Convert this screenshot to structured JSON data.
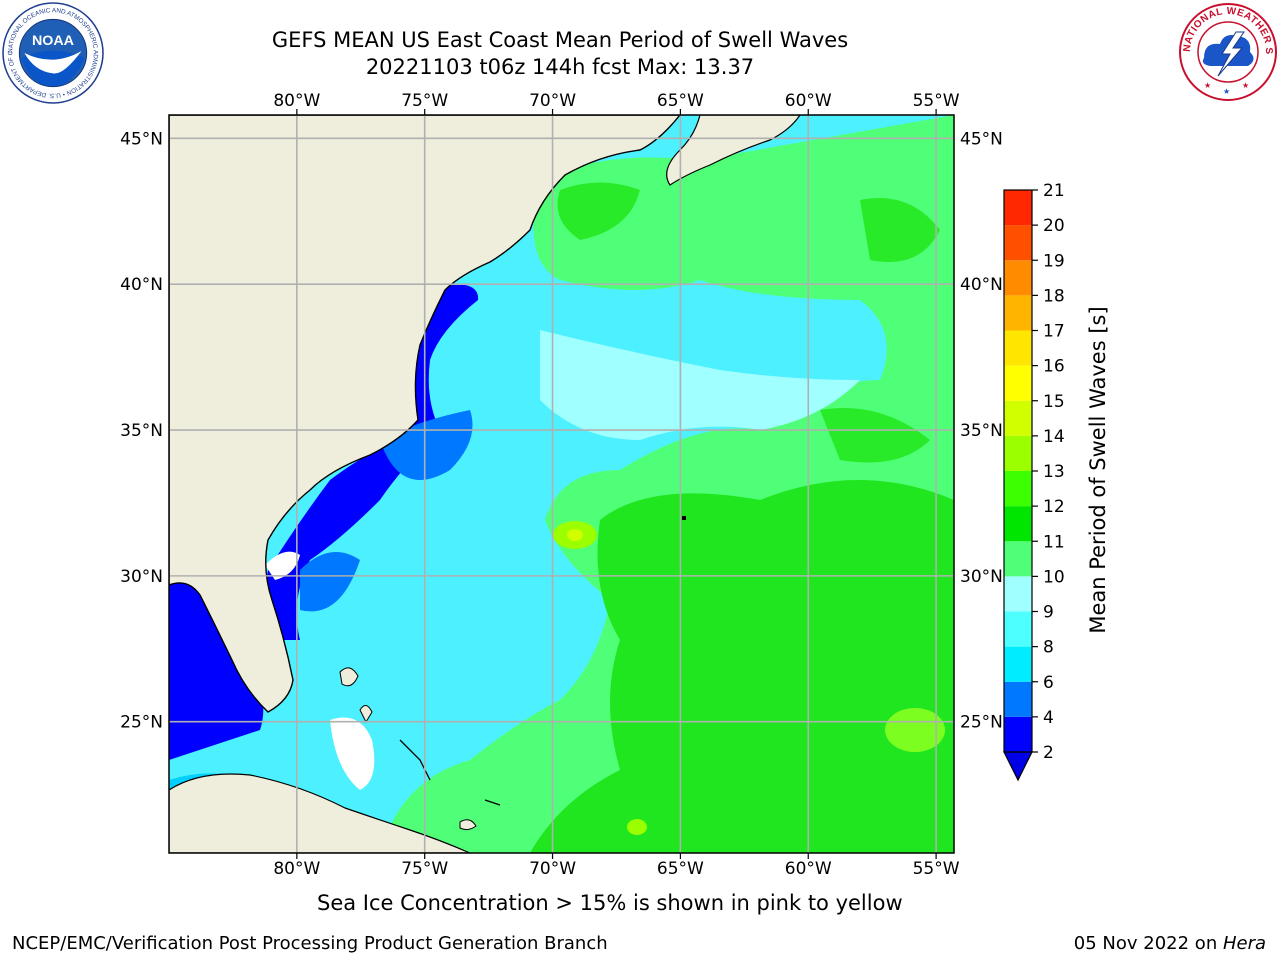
{
  "title": {
    "line1": "GEFS MEAN US East Coast Mean Period of Swell Waves",
    "line2": "20221103 t06z 144h fcst   Max: 13.37"
  },
  "logos": {
    "left": {
      "name": "NOAA",
      "text": "NOAA",
      "ring_text": "NATIONAL OCEANIC AND ATMOSPHERIC ADMINISTRATION • U.S. DEPARTMENT OF COMMERCE"
    },
    "right": {
      "name": "National Weather Service",
      "ring_text": "NATIONAL WEATHER SERVICE"
    }
  },
  "map": {
    "lon_labels": [
      "80°W",
      "75°W",
      "70°W",
      "65°W",
      "60°W",
      "55°W"
    ],
    "lat_labels": [
      "45°N",
      "40°N",
      "35°N",
      "30°N",
      "25°N"
    ],
    "lon_range": [
      -85,
      -54.3
    ],
    "lat_range": [
      20.5,
      45.8
    ],
    "land_color": "#efeedc",
    "grid": true
  },
  "colorbar": {
    "label": "Mean Period of Swell Waves [s]",
    "ticks": [
      "2",
      "4",
      "6",
      "8",
      "9",
      "10",
      "11",
      "12",
      "13",
      "14",
      "15",
      "16",
      "17",
      "18",
      "19",
      "20",
      "21"
    ],
    "colors": [
      "#0000ff",
      "#0078ff",
      "#00ecff",
      "#4dffff",
      "#a0ffff",
      "#50ff78",
      "#00e600",
      "#3cff00",
      "#9cff00",
      "#d2ff00",
      "#ffff00",
      "#ffe600",
      "#ffb400",
      "#ff8c00",
      "#ff5000",
      "#ff2800",
      "#ff0000"
    ],
    "under_color": "#0000e6"
  },
  "caption": "Sea Ice Concentration > 15% is shown in pink to yellow",
  "footer": {
    "left": "NCEP/EMC/Verification Post Processing Product Generation Branch",
    "right_date": "05 Nov 2022 on ",
    "right_machine": "Hera"
  }
}
